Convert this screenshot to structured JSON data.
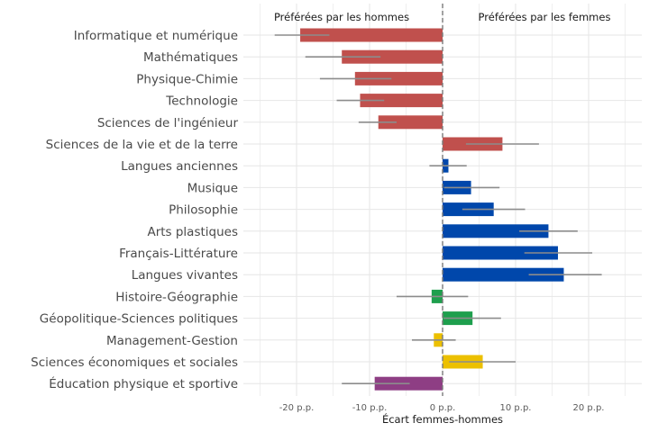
{
  "chart_data": {
    "type": "bar",
    "orientation": "horizontal",
    "xlabel": "Écart femmes-hommes",
    "xlim": [
      -25,
      27
    ],
    "xticks": [
      -20,
      -10,
      0,
      10,
      20
    ],
    "xtick_labels": [
      "-20 p.p.",
      "-10 p.p.",
      "0 p.p.",
      "10 p.p.",
      "20 p.p."
    ],
    "grid": true,
    "left_annotation": "Préférées par les hommes",
    "right_annotation": "Préférées par les femmes",
    "categories": [
      {
        "label": "Informatique et numérique",
        "value": -19.5,
        "err_low": -23,
        "err_high": -15.5,
        "color": "#c0504d"
      },
      {
        "label": "Mathématiques",
        "value": -13.8,
        "err_low": -18.8,
        "err_high": -8.5,
        "color": "#c0504d"
      },
      {
        "label": "Physique-Chimie",
        "value": -12.0,
        "err_low": -16.8,
        "err_high": -7.0,
        "color": "#c0504d"
      },
      {
        "label": "Technologie",
        "value": -11.3,
        "err_low": -14.5,
        "err_high": -8.0,
        "color": "#c0504d"
      },
      {
        "label": "Sciences de l'ingénieur",
        "value": -8.8,
        "err_low": -11.5,
        "err_high": -6.3,
        "color": "#c0504d"
      },
      {
        "label": "Sciences de la vie et de la terre",
        "value": 8.2,
        "err_low": 3.2,
        "err_high": 13.2,
        "color": "#c0504d"
      },
      {
        "label": "Langues anciennes",
        "value": 0.8,
        "err_low": -1.8,
        "err_high": 3.3,
        "color": "#0047ab"
      },
      {
        "label": "Musique",
        "value": 3.9,
        "err_low": 0.2,
        "err_high": 7.8,
        "color": "#0047ab"
      },
      {
        "label": "Philosophie",
        "value": 7.0,
        "err_low": 2.7,
        "err_high": 11.3,
        "color": "#0047ab"
      },
      {
        "label": "Arts plastiques",
        "value": 14.5,
        "err_low": 10.5,
        "err_high": 18.5,
        "color": "#0047ab"
      },
      {
        "label": "Français-Littérature",
        "value": 15.8,
        "err_low": 11.2,
        "err_high": 20.5,
        "color": "#0047ab"
      },
      {
        "label": "Langues vivantes",
        "value": 16.6,
        "err_low": 11.8,
        "err_high": 21.8,
        "color": "#0047ab"
      },
      {
        "label": "Histoire-Géographie",
        "value": -1.5,
        "err_low": -6.3,
        "err_high": 3.5,
        "color": "#1e9f4d"
      },
      {
        "label": "Géopolitique-Sciences politiques",
        "value": 4.1,
        "err_low": 0.1,
        "err_high": 8.0,
        "color": "#1e9f4d"
      },
      {
        "label": "Management-Gestion",
        "value": -1.2,
        "err_low": -4.2,
        "err_high": 1.8,
        "color": "#ecc000"
      },
      {
        "label": "Sciences économiques et sociales",
        "value": 5.5,
        "err_low": 0.9,
        "err_high": 10.0,
        "color": "#ecc000"
      },
      {
        "label": "Éducation physique et sportive",
        "value": -9.3,
        "err_low": -13.8,
        "err_high": -4.5,
        "color": "#8e3e84"
      }
    ]
  }
}
